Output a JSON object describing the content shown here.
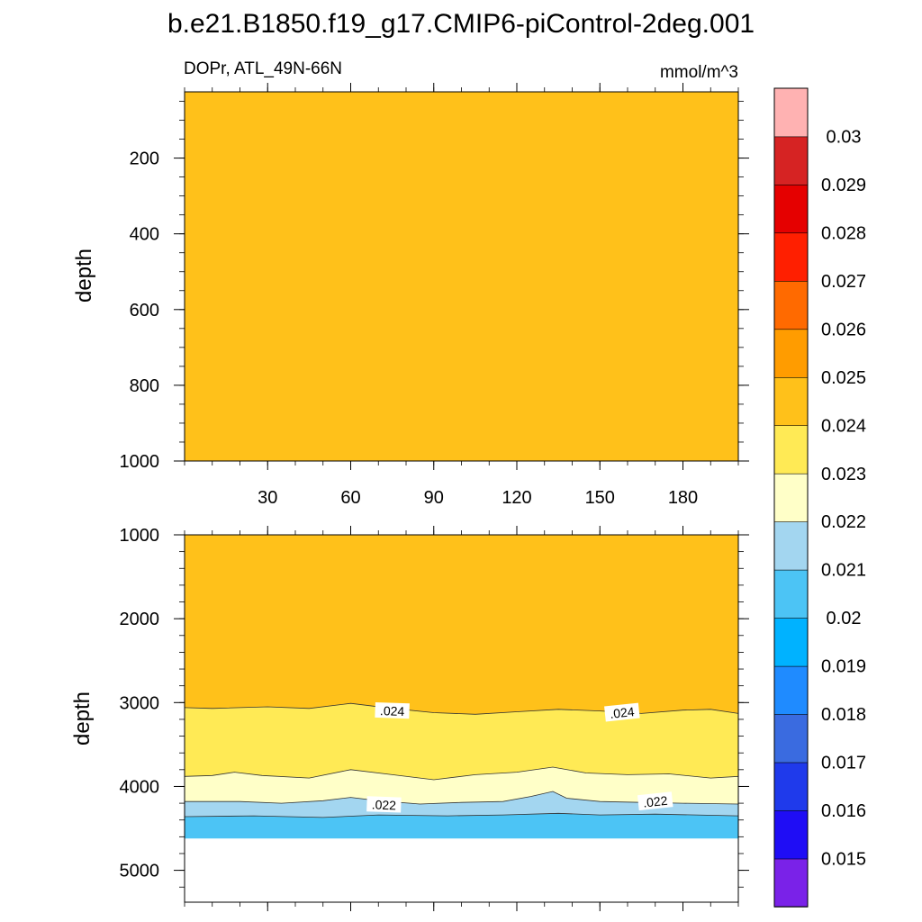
{
  "title": "b.e21.B1850.f19_g17.CMIP6-piControl-2deg.001",
  "chart_data": {
    "type": "heatmap",
    "variable_label": "DOPr, ATL_49N-66N",
    "units_label": "mmol/m^3",
    "x_axis": {
      "range": [
        0,
        200
      ],
      "ticks": [
        30,
        60,
        90,
        120,
        150,
        180
      ],
      "tick_labels": [
        "30",
        "60",
        "90",
        "120",
        "150",
        "180"
      ]
    },
    "panels": [
      {
        "name": "upper",
        "ylabel": "depth",
        "ylim": [
          25,
          1000
        ],
        "yticks": [
          200,
          400,
          600,
          800,
          1000
        ],
        "ytick_labels": [
          "200",
          "400",
          "600",
          "800",
          "1000"
        ],
        "fill_level": "0.024-0.025"
      },
      {
        "name": "lower",
        "ylabel": "depth",
        "ylim": [
          1000,
          5380
        ],
        "yticks": [
          1000,
          2000,
          3000,
          4000,
          5000
        ],
        "ytick_labels": [
          "1000",
          "2000",
          "3000",
          "4000",
          "5000"
        ],
        "ocean_bottom_depth": 4620,
        "contour_labels": [
          {
            "text": ".024",
            "x": 75,
            "depth": 3100
          },
          {
            "text": ".024",
            "x": 158,
            "depth": 3120
          },
          {
            "text": ".022",
            "x": 72,
            "depth": 4220
          },
          {
            "text": ".022",
            "x": 170,
            "depth": 4180
          }
        ],
        "layers": [
          {
            "level": "0.024-0.025",
            "color": "#ffc11a",
            "bottom": [
              [
                0,
                3060
              ],
              [
                10,
                3070
              ],
              [
                30,
                3050
              ],
              [
                45,
                3070
              ],
              [
                60,
                3010
              ],
              [
                75,
                3070
              ],
              [
                90,
                3120
              ],
              [
                105,
                3140
              ],
              [
                120,
                3110
              ],
              [
                135,
                3080
              ],
              [
                150,
                3100
              ],
              [
                165,
                3130
              ],
              [
                180,
                3090
              ],
              [
                190,
                3080
              ],
              [
                200,
                3130
              ]
            ]
          },
          {
            "level": "0.023-0.024",
            "color": "#ffea55",
            "bottom": [
              [
                0,
                3880
              ],
              [
                10,
                3870
              ],
              [
                18,
                3830
              ],
              [
                28,
                3870
              ],
              [
                45,
                3900
              ],
              [
                60,
                3800
              ],
              [
                75,
                3860
              ],
              [
                90,
                3920
              ],
              [
                105,
                3860
              ],
              [
                120,
                3830
              ],
              [
                133,
                3770
              ],
              [
                145,
                3840
              ],
              [
                160,
                3860
              ],
              [
                175,
                3850
              ],
              [
                190,
                3900
              ],
              [
                200,
                3880
              ]
            ]
          },
          {
            "level": "0.022-0.023",
            "color": "#ffffc8",
            "bottom": [
              [
                0,
                4180
              ],
              [
                20,
                4180
              ],
              [
                35,
                4200
              ],
              [
                50,
                4170
              ],
              [
                60,
                4130
              ],
              [
                70,
                4170
              ],
              [
                85,
                4210
              ],
              [
                100,
                4190
              ],
              [
                115,
                4180
              ],
              [
                125,
                4120
              ],
              [
                133,
                4060
              ],
              [
                138,
                4140
              ],
              [
                150,
                4180
              ],
              [
                165,
                4190
              ],
              [
                180,
                4200
              ],
              [
                200,
                4210
              ]
            ]
          },
          {
            "level": "0.021-0.022",
            "color": "#a3d6f0",
            "bottom": [
              [
                0,
                4360
              ],
              [
                25,
                4350
              ],
              [
                50,
                4370
              ],
              [
                70,
                4340
              ],
              [
                95,
                4350
              ],
              [
                115,
                4340
              ],
              [
                135,
                4320
              ],
              [
                150,
                4340
              ],
              [
                170,
                4330
              ],
              [
                200,
                4350
              ]
            ]
          },
          {
            "level": "0.020-0.021",
            "color": "#4cc4f5",
            "bottom": [
              [
                0,
                4620
              ],
              [
                200,
                4620
              ]
            ]
          }
        ]
      }
    ],
    "colorbar": {
      "levels": [
        "0.015",
        "0.016",
        "0.017",
        "0.018",
        "0.019",
        "0.02",
        "0.021",
        "0.022",
        "0.023",
        "0.024",
        "0.025",
        "0.026",
        "0.027",
        "0.028",
        "0.029",
        "0.03"
      ],
      "colors": [
        "#7a22e8",
        "#1f0df5",
        "#1f3aeb",
        "#3a6be0",
        "#1f8bff",
        "#00b2ff",
        "#4cc4f5",
        "#a3d6f0",
        "#ffffc8",
        "#ffea55",
        "#ffc11a",
        "#ff9c00",
        "#ff6a00",
        "#ff1f00",
        "#e50000",
        "#d62323",
        "#ffb2b2"
      ]
    }
  }
}
